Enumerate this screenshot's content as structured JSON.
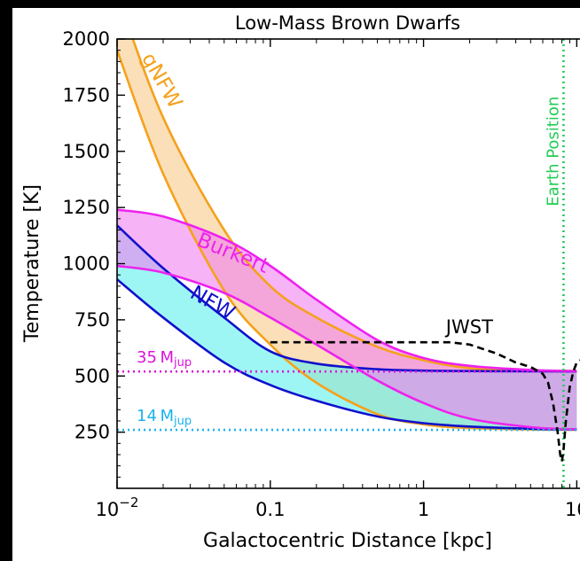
{
  "chart_data": {
    "type": "area",
    "title": "Low-Mass Brown Dwarfs",
    "xlabel": "Galactocentric Distance [kpc]",
    "ylabel": "Temperature [K]",
    "xscale": "log",
    "xlim": [
      0.01,
      10.5
    ],
    "ylim": [
      0,
      2000
    ],
    "x_ticks": [
      {
        "value": 0.01,
        "base": "10",
        "exp": "−2"
      },
      {
        "value": 0.1,
        "label": "0.1"
      },
      {
        "value": 1,
        "label": "1"
      },
      {
        "value": 10,
        "label": "10"
      }
    ],
    "y_ticks": [
      "2000",
      "1750",
      "1500",
      "1250",
      "1000",
      "750",
      "500",
      "250"
    ],
    "bands": [
      {
        "name": "gNFW",
        "color": "#f5a11b",
        "fill": "#f7c98a",
        "x": [
          0.01,
          0.02,
          0.05,
          0.1,
          0.2,
          0.5,
          1,
          2,
          5,
          10
        ],
        "upper": [
          2200,
          1650,
          1150,
          900,
          760,
          630,
          570,
          535,
          525,
          522
        ],
        "lower": [
          1950,
          1400,
          880,
          640,
          470,
          330,
          285,
          268,
          262,
          260
        ]
      },
      {
        "name": "NFW",
        "color": "#1010cc",
        "fill": "#5cf0ec",
        "x": [
          0.01,
          0.02,
          0.05,
          0.1,
          0.2,
          0.5,
          1,
          2,
          5,
          10
        ],
        "upper": [
          1170,
          980,
          760,
          610,
          555,
          530,
          524,
          522,
          521,
          520
        ],
        "lower": [
          930,
          760,
          560,
          460,
          390,
          320,
          290,
          275,
          265,
          262
        ]
      },
      {
        "name": "Burkert",
        "color": "#ee22ee",
        "fill": "#f080f0",
        "x": [
          0.01,
          0.02,
          0.05,
          0.1,
          0.2,
          0.5,
          1,
          2,
          5,
          10
        ],
        "upper": [
          1240,
          1210,
          1110,
          990,
          840,
          660,
          580,
          545,
          527,
          522
        ],
        "lower": [
          990,
          960,
          870,
          760,
          640,
          480,
          380,
          310,
          272,
          262
        ]
      }
    ],
    "jwst": {
      "name": "JWST",
      "color": "#000000",
      "x": [
        0.1,
        0.2,
        0.5,
        1,
        1.5,
        2,
        3,
        4,
        5,
        6,
        6.5,
        7,
        7.5,
        7.8,
        8.0,
        8.2,
        8.5,
        9,
        9.5,
        10,
        10.5
      ],
      "y": [
        650,
        650,
        650,
        650,
        650,
        640,
        600,
        560,
        540,
        510,
        470,
        380,
        250,
        150,
        120,
        170,
        300,
        450,
        520,
        560,
        570
      ]
    },
    "reference_lines": [
      {
        "name": "14 M_jup",
        "y": 260,
        "color": "#1ab4ee",
        "base": "14 M",
        "sub": "jup"
      },
      {
        "name": "35 M_jup",
        "y": 520,
        "color": "#dd11dd",
        "base": "35 M",
        "sub": "jup"
      }
    ],
    "earth_position": {
      "x": 8.2,
      "label": "Earth Position",
      "color": "#22cc55"
    },
    "grid": false
  }
}
